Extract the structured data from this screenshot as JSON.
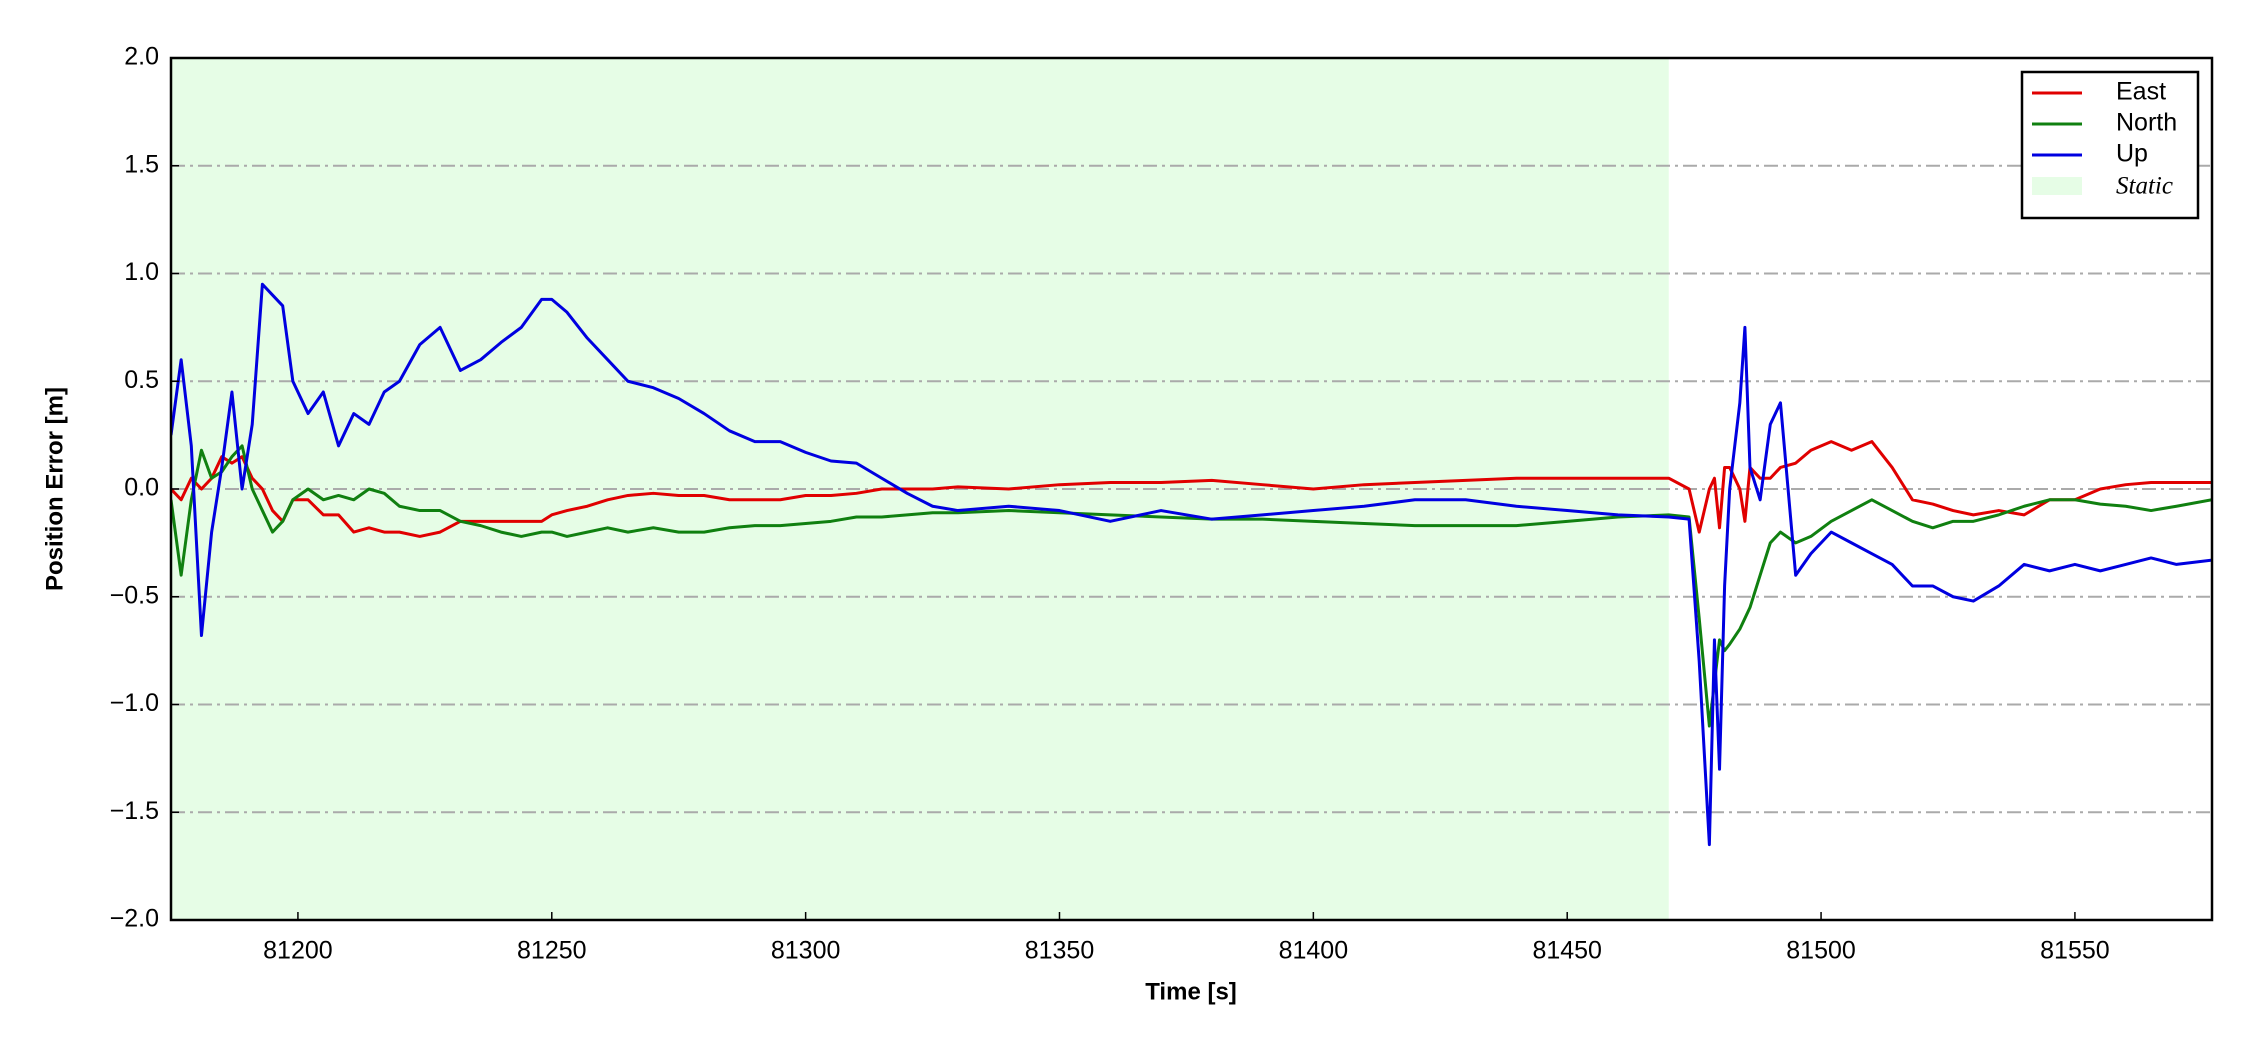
{
  "chart_data": {
    "type": "line",
    "xlabel": "Time [s]",
    "ylabel": "Position Error [m]",
    "xlim": [
      81175,
      81577
    ],
    "ylim": [
      -2,
      2
    ],
    "xticks": [
      81200,
      81250,
      81300,
      81350,
      81400,
      81450,
      81500,
      81550
    ],
    "yticks": [
      {
        "value": -2.0,
        "label": "−2.0"
      },
      {
        "value": -1.5,
        "label": "−1.5"
      },
      {
        "value": -1.0,
        "label": "−1.0"
      },
      {
        "value": -0.5,
        "label": "−0.5"
      },
      {
        "value": 0.0,
        "label": "0.0"
      },
      0.5,
      {
        "value": 1.0,
        "label": "1.0"
      },
      1.5,
      {
        "value": 2.0,
        "label": "2.0"
      }
    ],
    "grid": true,
    "legend": "upper right",
    "shaded_regions": [
      {
        "name": "Static",
        "color": "#e6fde6",
        "x": [
          81175,
          81470
        ]
      }
    ],
    "x": [
      81175,
      81177,
      81179,
      81181,
      81183,
      81185,
      81187,
      81189,
      81191,
      81193,
      81195,
      81197,
      81199,
      81202,
      81205,
      81208,
      81211,
      81214,
      81217,
      81220,
      81224,
      81228,
      81232,
      81236,
      81240,
      81244,
      81248,
      81250,
      81253,
      81257,
      81261,
      81265,
      81270,
      81275,
      81280,
      81285,
      81290,
      81295,
      81300,
      81305,
      81310,
      81315,
      81320,
      81325,
      81330,
      81340,
      81350,
      81360,
      81370,
      81380,
      81390,
      81400,
      81410,
      81420,
      81430,
      81440,
      81450,
      81460,
      81470,
      81474,
      81476,
      81478,
      81479,
      81480,
      81481,
      81482,
      81484,
      81485,
      81486,
      81488,
      81490,
      81492,
      81495,
      81498,
      81502,
      81506,
      81510,
      81514,
      81518,
      81522,
      81526,
      81530,
      81535,
      81540,
      81545,
      81550,
      81555,
      81560,
      81565,
      81570,
      81577
    ],
    "series": [
      {
        "name": "East",
        "color": "#e00000",
        "values": [
          0.0,
          -0.05,
          0.05,
          0.0,
          0.05,
          0.15,
          0.12,
          0.15,
          0.05,
          0.0,
          -0.1,
          -0.15,
          -0.05,
          -0.05,
          -0.12,
          -0.12,
          -0.2,
          -0.18,
          -0.2,
          -0.2,
          -0.22,
          -0.2,
          -0.15,
          -0.15,
          -0.15,
          -0.15,
          -0.15,
          -0.12,
          -0.1,
          -0.08,
          -0.05,
          -0.03,
          -0.02,
          -0.03,
          -0.03,
          -0.05,
          -0.05,
          -0.05,
          -0.03,
          -0.03,
          -0.02,
          0.0,
          0.0,
          0.0,
          0.01,
          0.0,
          0.02,
          0.03,
          0.03,
          0.04,
          0.02,
          0.0,
          0.02,
          0.03,
          0.04,
          0.05,
          0.05,
          0.05,
          0.05,
          0.0,
          -0.2,
          0.0,
          0.05,
          -0.18,
          0.1,
          0.1,
          0.0,
          -0.15,
          0.1,
          0.05,
          0.05,
          0.1,
          0.12,
          0.18,
          0.22,
          0.18,
          0.22,
          0.1,
          -0.05,
          -0.07,
          -0.1,
          -0.12,
          -0.1,
          -0.12,
          -0.05,
          -0.05,
          0.0,
          0.02,
          0.03,
          0.03,
          0.03
        ]
      },
      {
        "name": "North",
        "color": "#108010",
        "values": [
          -0.05,
          -0.4,
          -0.05,
          0.18,
          0.05,
          0.08,
          0.15,
          0.2,
          0.0,
          -0.1,
          -0.2,
          -0.15,
          -0.05,
          0.0,
          -0.05,
          -0.03,
          -0.05,
          0.0,
          -0.02,
          -0.08,
          -0.1,
          -0.1,
          -0.15,
          -0.17,
          -0.2,
          -0.22,
          -0.2,
          -0.2,
          -0.22,
          -0.2,
          -0.18,
          -0.2,
          -0.18,
          -0.2,
          -0.2,
          -0.18,
          -0.17,
          -0.17,
          -0.16,
          -0.15,
          -0.13,
          -0.13,
          -0.12,
          -0.11,
          -0.11,
          -0.1,
          -0.11,
          -0.12,
          -0.13,
          -0.14,
          -0.14,
          -0.15,
          -0.16,
          -0.17,
          -0.17,
          -0.17,
          -0.15,
          -0.13,
          -0.12,
          -0.13,
          -0.6,
          -1.1,
          -0.9,
          -0.7,
          -0.75,
          -0.72,
          -0.65,
          -0.6,
          -0.55,
          -0.4,
          -0.25,
          -0.2,
          -0.25,
          -0.22,
          -0.15,
          -0.1,
          -0.05,
          -0.1,
          -0.15,
          -0.18,
          -0.15,
          -0.15,
          -0.12,
          -0.08,
          -0.05,
          -0.05,
          -0.07,
          -0.08,
          -0.1,
          -0.08,
          -0.05
        ]
      },
      {
        "name": "Up",
        "color": "#0000e0",
        "values": [
          0.25,
          0.6,
          0.2,
          -0.68,
          -0.2,
          0.1,
          0.45,
          0.0,
          0.3,
          0.95,
          0.9,
          0.85,
          0.5,
          0.35,
          0.45,
          0.2,
          0.35,
          0.3,
          0.45,
          0.5,
          0.67,
          0.75,
          0.55,
          0.6,
          0.68,
          0.75,
          0.88,
          0.88,
          0.82,
          0.7,
          0.6,
          0.5,
          0.47,
          0.42,
          0.35,
          0.27,
          0.22,
          0.22,
          0.17,
          0.13,
          0.12,
          0.05,
          -0.02,
          -0.08,
          -0.1,
          -0.08,
          -0.1,
          -0.15,
          -0.1,
          -0.14,
          -0.12,
          -0.1,
          -0.08,
          -0.05,
          -0.05,
          -0.08,
          -0.1,
          -0.12,
          -0.13,
          -0.14,
          -0.8,
          -1.65,
          -0.7,
          -1.3,
          -0.45,
          0.0,
          0.4,
          0.75,
          0.1,
          -0.05,
          0.3,
          0.4,
          -0.4,
          -0.3,
          -0.2,
          -0.25,
          -0.3,
          -0.35,
          -0.45,
          -0.45,
          -0.5,
          -0.52,
          -0.45,
          -0.35,
          -0.38,
          -0.35,
          -0.38,
          -0.35,
          -0.32,
          -0.35,
          -0.33
        ]
      }
    ]
  }
}
